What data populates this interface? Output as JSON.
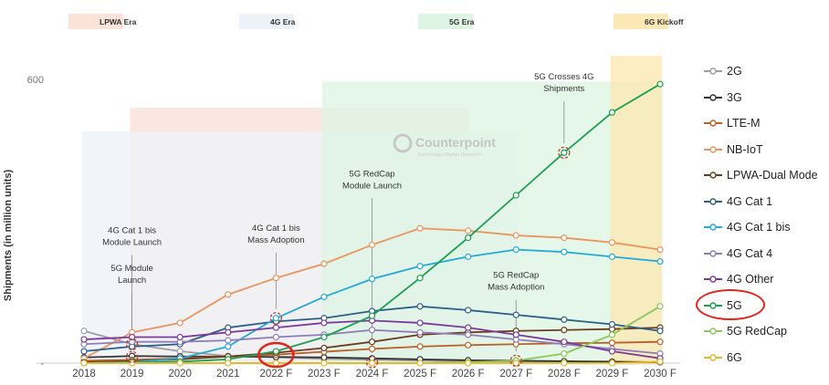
{
  "chart_data": {
    "type": "line",
    "ylabel": "Shipments (in million units)",
    "y_tick_labels": [
      "600",
      "-"
    ],
    "ylim": [
      0,
      620
    ],
    "categories": [
      "2018",
      "2019",
      "2020",
      "2021",
      "2022 F",
      "2023 F",
      "2024 F",
      "2025 F",
      "2026 F",
      "2027 F",
      "2028 F",
      "2029 F",
      "2030 F"
    ],
    "eras": [
      {
        "name": "LPWA Era",
        "color": "#fbe3da",
        "start": "2019",
        "end": "2026 F",
        "top": 540
      },
      {
        "name": "4G Era",
        "color": "#edf2f8",
        "start": "2018",
        "end": "2027 F",
        "top": 490
      },
      {
        "name": "5G Era",
        "color": "#def5e4",
        "start": "2023 F",
        "end": "2030 F",
        "top": 595
      },
      {
        "name": "6G Kickoff",
        "color": "#fbe8b4",
        "start": "2029 F",
        "end": "2030 F",
        "top": 650
      }
    ],
    "series": [
      {
        "name": "2G",
        "color": "#9e9e9e",
        "values": [
          68,
          40,
          25,
          15,
          12,
          9,
          7,
          5,
          4,
          3,
          3,
          2,
          2
        ]
      },
      {
        "name": "3G",
        "color": "#333333",
        "values": [
          12,
          15,
          14,
          14,
          13,
          12,
          10,
          8,
          6,
          5,
          4,
          3,
          2
        ]
      },
      {
        "name": "LTE-M",
        "color": "#b8622a",
        "values": [
          5,
          7,
          10,
          14,
          18,
          24,
          30,
          35,
          38,
          40,
          42,
          43,
          45
        ]
      },
      {
        "name": "NB-IoT",
        "color": "#e8955f",
        "values": [
          10,
          65,
          85,
          145,
          180,
          210,
          250,
          285,
          280,
          270,
          265,
          255,
          240
        ]
      },
      {
        "name": "LPWA-Dual Mode",
        "color": "#6b3c1e",
        "values": [
          2,
          4,
          8,
          14,
          22,
          32,
          45,
          60,
          65,
          68,
          70,
          72,
          75
        ]
      },
      {
        "name": "4G Cat 1",
        "color": "#2a5f86",
        "values": [
          25,
          35,
          40,
          75,
          88,
          95,
          110,
          120,
          112,
          102,
          92,
          82,
          68
        ]
      },
      {
        "name": "4G Cat 1 bis",
        "color": "#25a9d6",
        "values": [
          0,
          2,
          10,
          35,
          95,
          140,
          178,
          205,
          225,
          240,
          235,
          225,
          215
        ]
      },
      {
        "name": "4G Cat 4",
        "color": "#8f7db8",
        "values": [
          40,
          45,
          45,
          48,
          55,
          60,
          70,
          65,
          60,
          50,
          40,
          30,
          20
        ]
      },
      {
        "name": "4G Other",
        "color": "#7b3a9a",
        "values": [
          50,
          55,
          55,
          65,
          75,
          85,
          90,
          85,
          75,
          60,
          45,
          25,
          10
        ]
      },
      {
        "name": "5G",
        "color": "#1e9e55",
        "values": [
          0,
          1,
          3,
          8,
          25,
          55,
          100,
          180,
          265,
          355,
          445,
          530,
          590
        ]
      },
      {
        "name": "5G RedCap",
        "color": "#8dc65a",
        "values": [
          0,
          0,
          0,
          0,
          0,
          0,
          0,
          0,
          2,
          5,
          20,
          60,
          120
        ]
      },
      {
        "name": "6G",
        "color": "#e8b82a",
        "values": [
          0,
          0,
          0,
          0,
          0,
          0,
          0,
          0,
          0,
          0,
          0,
          0,
          3
        ]
      }
    ],
    "highlighted_series": "5G",
    "annotations": [
      {
        "text": "5G Module Launch",
        "lines": [
          "5G Module",
          "Launch"
        ],
        "x": "2019",
        "y": 13,
        "label_y": 195
      },
      {
        "text": "4G Cat 1 bis Module Launch",
        "lines": [
          "4G Cat 1 bis",
          "Module Launch"
        ],
        "x": "2019",
        "y": 40,
        "label_y": 275
      },
      {
        "text": "4G Cat 1 bis Mass Adoption",
        "lines": [
          "4G Cat 1 bis",
          "Mass Adoption"
        ],
        "x": "2022 F",
        "y": 95,
        "label_y": 280
      },
      {
        "text": "5G RedCap Module Launch",
        "lines": [
          "5G RedCap",
          "Module Launch"
        ],
        "x": "2024 F",
        "y": 2,
        "label_y": 395
      },
      {
        "text": "5G RedCap Mass Adoption",
        "lines": [
          "5G RedCap",
          "Mass Adoption"
        ],
        "x": "2027 F",
        "y": 5,
        "label_y": 180
      },
      {
        "text": "5G Crosses 4G Shipments",
        "lines": [
          "5G Crosses 4G",
          "Shipments"
        ],
        "x": "2028 F",
        "y": 445,
        "label_y": 600
      }
    ],
    "watermark": {
      "brand": "Counterpoint",
      "tagline": "Technology Market Research"
    }
  }
}
